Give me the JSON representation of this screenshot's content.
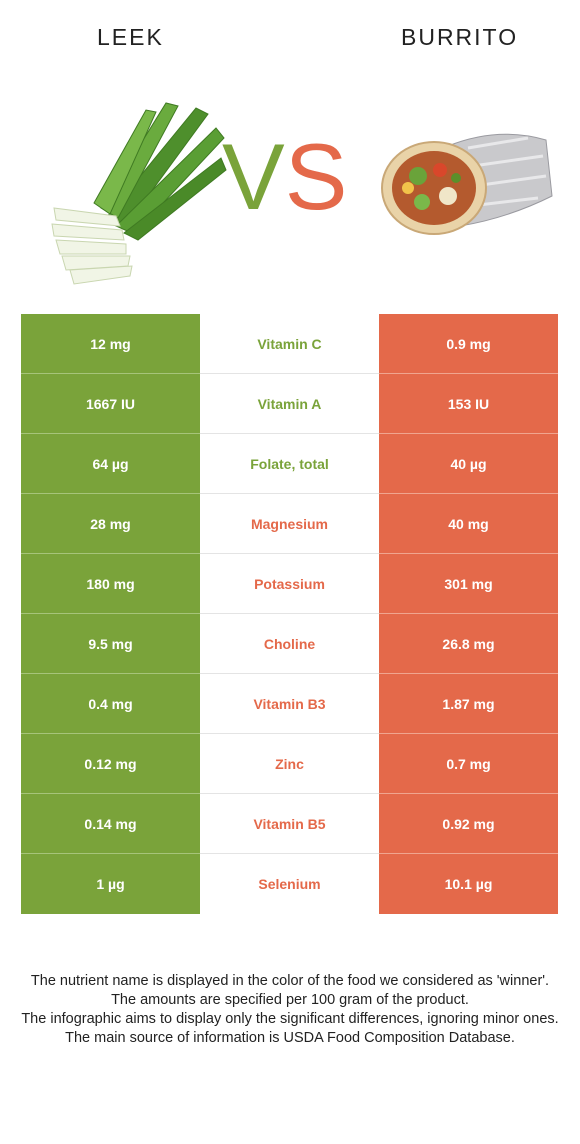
{
  "header": {
    "left_food": "LEEK",
    "right_food": "BURRITO",
    "vs_v": "V",
    "vs_s": "S"
  },
  "colors": {
    "leek": "#7aa33a",
    "burrito": "#e4694a"
  },
  "rows": [
    {
      "left": "12 mg",
      "nutrient": "Vitamin C",
      "right": "0.9 mg",
      "winner": "leek"
    },
    {
      "left": "1667 IU",
      "nutrient": "Vitamin A",
      "right": "153 IU",
      "winner": "leek"
    },
    {
      "left": "64 µg",
      "nutrient": "Folate, total",
      "right": "40 µg",
      "winner": "leek"
    },
    {
      "left": "28 mg",
      "nutrient": "Magnesium",
      "right": "40 mg",
      "winner": "burrito"
    },
    {
      "left": "180 mg",
      "nutrient": "Potassium",
      "right": "301 mg",
      "winner": "burrito"
    },
    {
      "left": "9.5 mg",
      "nutrient": "Choline",
      "right": "26.8 mg",
      "winner": "burrito"
    },
    {
      "left": "0.4 mg",
      "nutrient": "Vitamin B3",
      "right": "1.87 mg",
      "winner": "burrito"
    },
    {
      "left": "0.12 mg",
      "nutrient": "Zinc",
      "right": "0.7 mg",
      "winner": "burrito"
    },
    {
      "left": "0.14 mg",
      "nutrient": "Vitamin B5",
      "right": "0.92 mg",
      "winner": "burrito"
    },
    {
      "left": "1 µg",
      "nutrient": "Selenium",
      "right": "10.1 µg",
      "winner": "burrito"
    }
  ],
  "footer": {
    "line1": "The nutrient name is displayed in the color of the food we considered as 'winner'.",
    "line2": "The amounts are specified per 100 gram of the product.",
    "line3": "The infographic aims to display only the significant differences, ignoring minor ones.",
    "line4": "The main source of information is USDA Food Composition Database."
  }
}
